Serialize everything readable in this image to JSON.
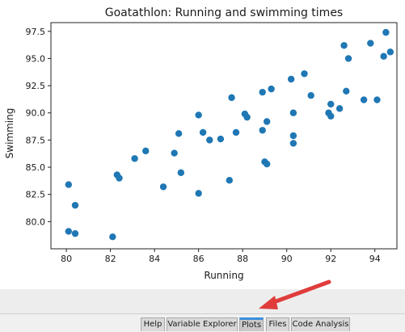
{
  "chart_data": {
    "type": "scatter",
    "title": "Goatathlon: Running and swimming times",
    "xlabel": "Running",
    "ylabel": "Swimming",
    "xlim": [
      79.3,
      95.0
    ],
    "ylim": [
      77.5,
      98.3
    ],
    "xticks": [
      80,
      82,
      84,
      86,
      88,
      90,
      92,
      94
    ],
    "yticks": [
      80.0,
      82.5,
      85.0,
      87.5,
      90.0,
      92.5,
      95.0,
      97.5
    ],
    "xtick_labels": [
      "80",
      "82",
      "84",
      "86",
      "88",
      "90",
      "92",
      "94"
    ],
    "ytick_labels": [
      "80.0",
      "82.5",
      "85.0",
      "87.5",
      "90.0",
      "92.5",
      "95.0",
      "97.5"
    ],
    "grid": false,
    "marker_color": "#1f77b4",
    "points": [
      {
        "x": 80.1,
        "y": 83.4
      },
      {
        "x": 80.1,
        "y": 79.1
      },
      {
        "x": 80.4,
        "y": 78.9
      },
      {
        "x": 80.4,
        "y": 81.5
      },
      {
        "x": 82.1,
        "y": 78.6
      },
      {
        "x": 82.3,
        "y": 84.3
      },
      {
        "x": 82.4,
        "y": 84.0
      },
      {
        "x": 83.1,
        "y": 85.8
      },
      {
        "x": 83.6,
        "y": 86.5
      },
      {
        "x": 84.4,
        "y": 83.2
      },
      {
        "x": 84.9,
        "y": 86.3
      },
      {
        "x": 85.1,
        "y": 88.1
      },
      {
        "x": 85.2,
        "y": 84.5
      },
      {
        "x": 86.0,
        "y": 89.8
      },
      {
        "x": 86.0,
        "y": 82.6
      },
      {
        "x": 86.2,
        "y": 88.2
      },
      {
        "x": 86.5,
        "y": 87.5
      },
      {
        "x": 87.0,
        "y": 87.6
      },
      {
        "x": 87.4,
        "y": 83.8
      },
      {
        "x": 87.5,
        "y": 91.4
      },
      {
        "x": 87.7,
        "y": 88.2
      },
      {
        "x": 88.1,
        "y": 89.9
      },
      {
        "x": 88.2,
        "y": 89.6
      },
      {
        "x": 88.9,
        "y": 88.4
      },
      {
        "x": 88.9,
        "y": 91.9
      },
      {
        "x": 89.0,
        "y": 85.5
      },
      {
        "x": 89.1,
        "y": 85.3
      },
      {
        "x": 89.1,
        "y": 89.2
      },
      {
        "x": 89.3,
        "y": 92.2
      },
      {
        "x": 90.2,
        "y": 93.1
      },
      {
        "x": 90.3,
        "y": 87.9
      },
      {
        "x": 90.3,
        "y": 87.2
      },
      {
        "x": 90.3,
        "y": 90.0
      },
      {
        "x": 90.8,
        "y": 93.6
      },
      {
        "x": 91.1,
        "y": 91.6
      },
      {
        "x": 91.9,
        "y": 90.0
      },
      {
        "x": 92.0,
        "y": 89.7
      },
      {
        "x": 92.0,
        "y": 90.8
      },
      {
        "x": 92.4,
        "y": 90.4
      },
      {
        "x": 92.6,
        "y": 96.2
      },
      {
        "x": 92.7,
        "y": 92.0
      },
      {
        "x": 92.8,
        "y": 95.0
      },
      {
        "x": 93.5,
        "y": 91.2
      },
      {
        "x": 93.8,
        "y": 96.4
      },
      {
        "x": 94.1,
        "y": 91.2
      },
      {
        "x": 94.4,
        "y": 95.2
      },
      {
        "x": 94.5,
        "y": 97.4
      },
      {
        "x": 94.7,
        "y": 95.6
      }
    ]
  },
  "tabs": [
    {
      "label": "Help"
    },
    {
      "label": "Variable Explorer"
    },
    {
      "label": "Plots"
    },
    {
      "label": "Files"
    },
    {
      "label": "Code Analysis"
    }
  ],
  "active_tab": "Plots",
  "colors": {
    "accent": "#3b8fd9",
    "annotation_arrow": "#e03c3c"
  }
}
